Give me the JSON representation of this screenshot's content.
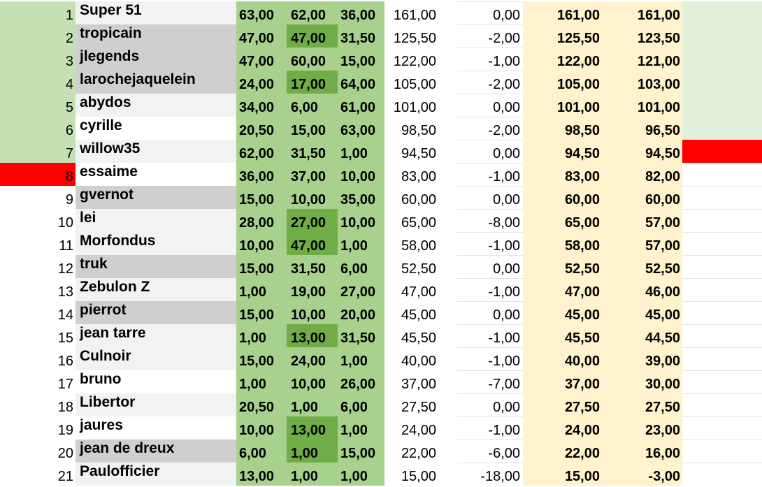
{
  "colors": {
    "rank_green": "#c6e0b4",
    "rank_red": "#ff0000",
    "name_grey": "#d0cece",
    "name_light": "#f2f2f2",
    "name_white": "#ffffff",
    "score_green": "#a9d18e",
    "score_highlight": "#70ad47",
    "total_bg": "#ffffff",
    "final_bg": "#fff2cc",
    "flag_green": "#e2efda",
    "flag_red": "#ff0000"
  },
  "rows": [
    {
      "rank": "1",
      "name": "Super 51",
      "s1": "63,00",
      "s2": "62,00",
      "s3": "36,00",
      "total": "161,00",
      "penalty": "0,00",
      "t1": "161,00",
      "t2": "161,00",
      "rank_bg": "green",
      "name_bg": "light",
      "hl": [],
      "flag": "green"
    },
    {
      "rank": "2",
      "name": "tropicain",
      "s1": "47,00",
      "s2": "47,00",
      "s3": "31,50",
      "total": "125,50",
      "penalty": "-2,00",
      "t1": "125,50",
      "t2": "123,50",
      "rank_bg": "green",
      "name_bg": "grey",
      "hl": [
        "s2"
      ],
      "flag": "green"
    },
    {
      "rank": "3",
      "name": "jlegends",
      "s1": "47,00",
      "s2": "60,00",
      "s3": "15,00",
      "total": "122,00",
      "penalty": "-1,00",
      "t1": "122,00",
      "t2": "121,00",
      "rank_bg": "green",
      "name_bg": "grey",
      "hl": [],
      "flag": "green"
    },
    {
      "rank": "4",
      "name": "larochejaquelein",
      "s1": "24,00",
      "s2": "17,00",
      "s3": "64,00",
      "total": "105,00",
      "penalty": "-2,00",
      "t1": "105,00",
      "t2": "103,00",
      "rank_bg": "green",
      "name_bg": "grey",
      "hl": [
        "s2"
      ],
      "flag": "green"
    },
    {
      "rank": "5",
      "name": "abydos",
      "s1": "34,00",
      "s2": "6,00",
      "s3": "61,00",
      "total": "101,00",
      "penalty": "0,00",
      "t1": "101,00",
      "t2": "101,00",
      "rank_bg": "green",
      "name_bg": "light",
      "hl": [],
      "flag": "green"
    },
    {
      "rank": "6",
      "name": "cyrille",
      "s1": "20,50",
      "s2": "15,00",
      "s3": "63,00",
      "total": "98,50",
      "penalty": "-2,00",
      "t1": "98,50",
      "t2": "96,50",
      "rank_bg": "green",
      "name_bg": "white",
      "hl": [],
      "flag": "green"
    },
    {
      "rank": "7",
      "name": "willow35",
      "s1": "62,00",
      "s2": "31,50",
      "s3": "1,00",
      "total": "94,50",
      "penalty": "0,00",
      "t1": "94,50",
      "t2": "94,50",
      "rank_bg": "green",
      "name_bg": "light",
      "hl": [],
      "flag": "red"
    },
    {
      "rank": "8",
      "name": "essaime",
      "s1": "36,00",
      "s2": "37,00",
      "s3": "10,00",
      "total": "83,00",
      "penalty": "-1,00",
      "t1": "83,00",
      "t2": "82,00",
      "rank_bg": "red",
      "name_bg": "white",
      "hl": [],
      "flag": "none"
    },
    {
      "rank": "9",
      "name": "gvernot",
      "s1": "15,00",
      "s2": "10,00",
      "s3": "35,00",
      "total": "60,00",
      "penalty": "0,00",
      "t1": "60,00",
      "t2": "60,00",
      "rank_bg": "none",
      "name_bg": "grey",
      "hl": [],
      "flag": "none"
    },
    {
      "rank": "10",
      "name": "lei",
      "s1": "28,00",
      "s2": "27,00",
      "s3": "10,00",
      "total": "65,00",
      "penalty": "-8,00",
      "t1": "65,00",
      "t2": "57,00",
      "rank_bg": "none",
      "name_bg": "light",
      "hl": [
        "s2"
      ],
      "flag": "none"
    },
    {
      "rank": "11",
      "name": "Morfondus",
      "s1": "10,00",
      "s2": "47,00",
      "s3": "1,00",
      "total": "58,00",
      "penalty": "-1,00",
      "t1": "58,00",
      "t2": "57,00",
      "rank_bg": "none",
      "name_bg": "light",
      "hl": [
        "s2"
      ],
      "flag": "none"
    },
    {
      "rank": "12",
      "name": "truk",
      "s1": "15,00",
      "s2": "31,50",
      "s3": "6,00",
      "total": "52,50",
      "penalty": "0,00",
      "t1": "52,50",
      "t2": "52,50",
      "rank_bg": "none",
      "name_bg": "grey",
      "hl": [],
      "flag": "none"
    },
    {
      "rank": "13",
      "name": "Zebulon Z",
      "s1": "1,00",
      "s2": "19,00",
      "s3": "27,00",
      "total": "47,00",
      "penalty": "-1,00",
      "t1": "47,00",
      "t2": "46,00",
      "rank_bg": "none",
      "name_bg": "light",
      "hl": [],
      "flag": "none"
    },
    {
      "rank": "14",
      "name": "pierrot",
      "s1": "15,00",
      "s2": "10,00",
      "s3": "20,00",
      "total": "45,00",
      "penalty": "0,00",
      "t1": "45,00",
      "t2": "45,00",
      "rank_bg": "none",
      "name_bg": "grey",
      "hl": [],
      "flag": "none"
    },
    {
      "rank": "15",
      "name": "jean tarre",
      "s1": "1,00",
      "s2": "13,00",
      "s3": "31,50",
      "total": "45,50",
      "penalty": "-1,00",
      "t1": "45,50",
      "t2": "44,50",
      "rank_bg": "none",
      "name_bg": "light",
      "hl": [
        "s2"
      ],
      "flag": "none"
    },
    {
      "rank": "16",
      "name": "Culnoir",
      "s1": "15,00",
      "s2": "24,00",
      "s3": "1,00",
      "total": "40,00",
      "penalty": "-1,00",
      "t1": "40,00",
      "t2": "39,00",
      "rank_bg": "none",
      "name_bg": "light",
      "hl": [],
      "flag": "none"
    },
    {
      "rank": "17",
      "name": "bruno",
      "s1": "1,00",
      "s2": "10,00",
      "s3": "26,00",
      "total": "37,00",
      "penalty": "-7,00",
      "t1": "37,00",
      "t2": "30,00",
      "rank_bg": "none",
      "name_bg": "white",
      "hl": [],
      "flag": "none"
    },
    {
      "rank": "18",
      "name": "Libertor",
      "s1": "20,50",
      "s2": "1,00",
      "s3": "6,00",
      "total": "27,50",
      "penalty": "0,00",
      "t1": "27,50",
      "t2": "27,50",
      "rank_bg": "none",
      "name_bg": "light",
      "hl": [],
      "flag": "none"
    },
    {
      "rank": "19",
      "name": "jaures",
      "s1": "10,00",
      "s2": "13,00",
      "s3": "1,00",
      "total": "24,00",
      "penalty": "-1,00",
      "t1": "24,00",
      "t2": "23,00",
      "rank_bg": "none",
      "name_bg": "white",
      "hl": [
        "s2"
      ],
      "flag": "none"
    },
    {
      "rank": "20",
      "name": "jean de dreux",
      "s1": "6,00",
      "s2": "1,00",
      "s3": "15,00",
      "total": "22,00",
      "penalty": "-6,00",
      "t1": "22,00",
      "t2": "16,00",
      "rank_bg": "none",
      "name_bg": "grey",
      "hl": [
        "s2"
      ],
      "flag": "none"
    },
    {
      "rank": "21",
      "name": "Paulofficier",
      "s1": "13,00",
      "s2": "1,00",
      "s3": "1,00",
      "total": "15,00",
      "penalty": "-18,00",
      "t1": "15,00",
      "t2": "-3,00",
      "rank_bg": "none",
      "name_bg": "light",
      "hl": [],
      "flag": "none"
    }
  ]
}
